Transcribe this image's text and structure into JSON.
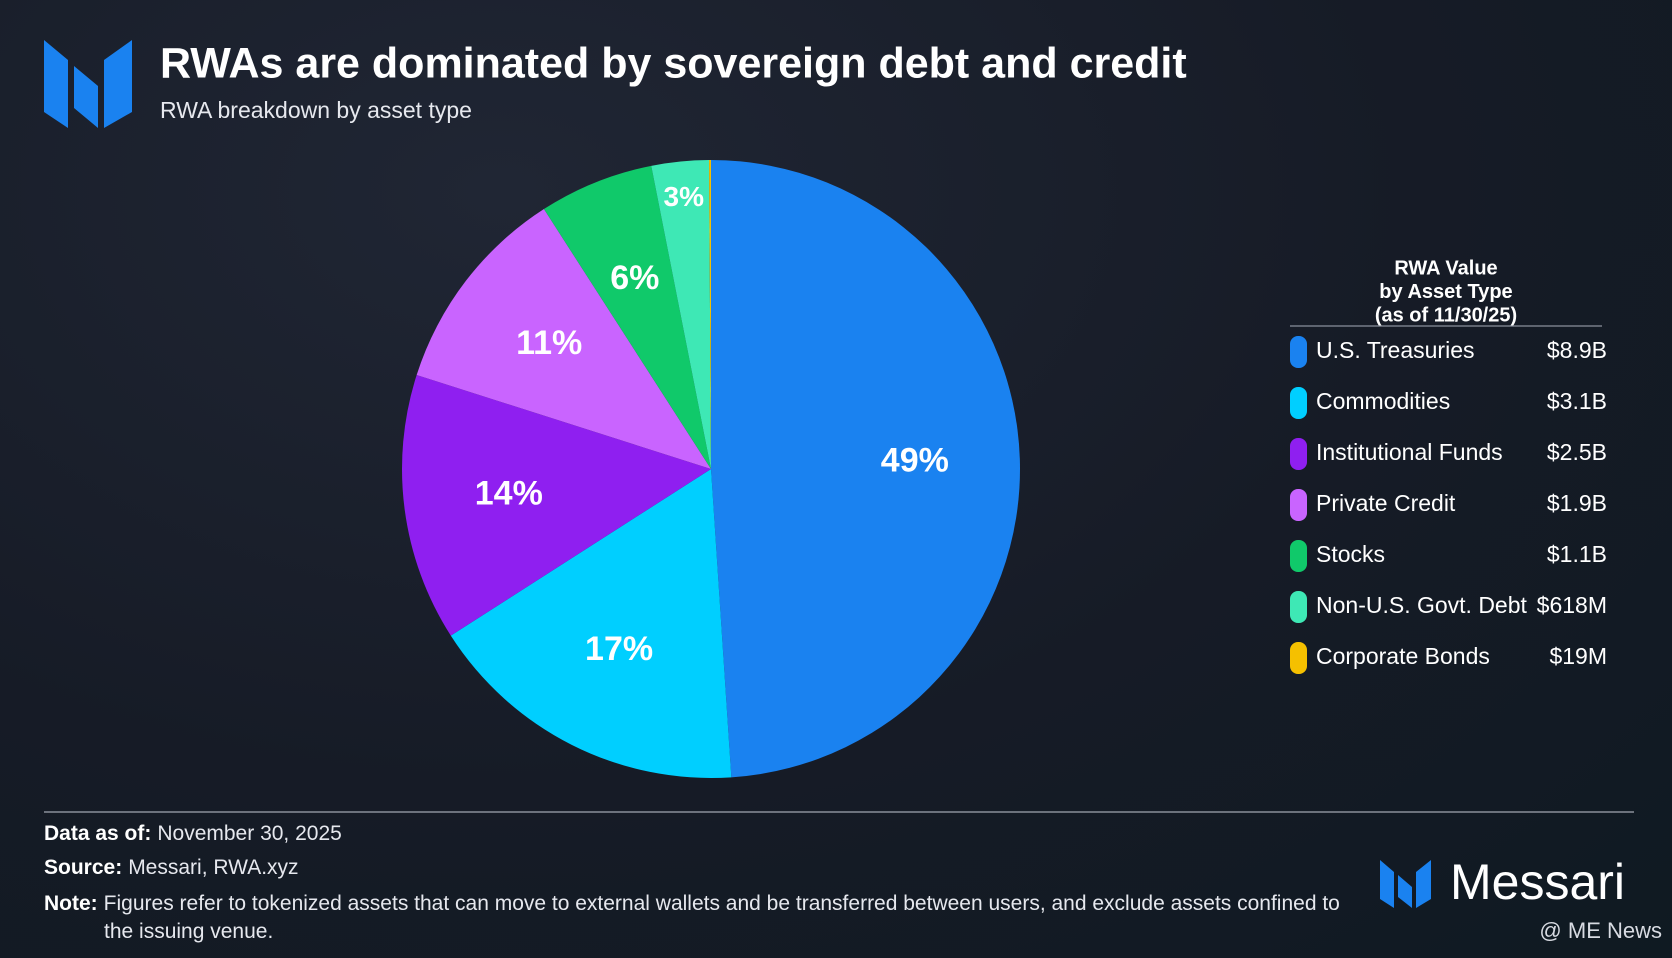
{
  "chart_data": {
    "type": "pie",
    "title": "RWAs are dominated by sovereign debt and credit",
    "subtitle": "RWA breakdown by asset type",
    "categories": [
      "U.S. Treasuries",
      "Commodities",
      "Institutional Funds",
      "Private Credit",
      "Stocks",
      "Non-U.S. Govt. Debt",
      "Corporate Bonds"
    ],
    "values": [
      49,
      17,
      14,
      11,
      6,
      3,
      0.1
    ],
    "value_labels": [
      "49%",
      "17%",
      "14%",
      "11%",
      "6%",
      "3%",
      null
    ],
    "colors": [
      "#1a82f0",
      "#00cfff",
      "#8f1ff0",
      "#c964ff",
      "#10c96a",
      "#3ee8b5",
      "#f5c000"
    ],
    "legend_title": [
      "RWA Value",
      "by Asset Type",
      "(as of 11/30/25)"
    ],
    "legend_values": [
      "$8.9B",
      "$3.1B",
      "$2.5B",
      "$1.9B",
      "$1.1B",
      "$618M",
      "$19M"
    ]
  },
  "footer": {
    "data_as_of": {
      "label": "Data as of:",
      "text": "November 30, 2025"
    },
    "source": {
      "label": "Source:",
      "text": "Messari, RWA.xyz"
    },
    "note": {
      "label": "Note:",
      "text": "Figures refer to tokenized assets that can move to external wallets and be transferred between users, and exclude assets confined to the issuing venue."
    }
  },
  "brand": "Messari",
  "watermark": "@ ME News"
}
